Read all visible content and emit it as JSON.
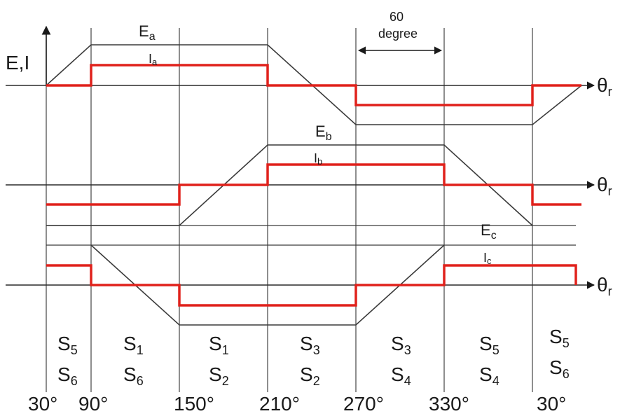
{
  "axis": {
    "y_label": "E,I",
    "x_symbol": "θ",
    "x_subscript": "r"
  },
  "phases": [
    {
      "id": "a",
      "emf_label": "E",
      "current_label": "I",
      "sub": "a"
    },
    {
      "id": "b",
      "emf_label": "E",
      "current_label": "I",
      "sub": "b"
    },
    {
      "id": "c",
      "emf_label": "E",
      "current_label": "I",
      "sub": "c"
    }
  ],
  "annotation": {
    "line1": "60",
    "line2": "degree"
  },
  "switch_pairs": [
    {
      "top": "S",
      "top_sub": "5",
      "bottom": "S",
      "bottom_sub": "6"
    },
    {
      "top": "S",
      "top_sub": "1",
      "bottom": "S",
      "bottom_sub": "6"
    },
    {
      "top": "S",
      "top_sub": "1",
      "bottom": "S",
      "bottom_sub": "2"
    },
    {
      "top": "S",
      "top_sub": "3",
      "bottom": "S",
      "bottom_sub": "2"
    },
    {
      "top": "S",
      "top_sub": "3",
      "bottom": "S",
      "bottom_sub": "4"
    },
    {
      "top": "S",
      "top_sub": "5",
      "bottom": "S",
      "bottom_sub": "4"
    },
    {
      "top": "S",
      "top_sub": "5",
      "bottom": "S",
      "bottom_sub": "6"
    }
  ],
  "angle_labels": [
    "30°",
    "90°",
    "150°",
    "210°",
    "270°",
    "330°",
    "30°"
  ],
  "colors": {
    "emf": "#3a3a3a",
    "current": "#e0211b",
    "axis": "#2a2a2a",
    "divider": "#444444"
  }
}
